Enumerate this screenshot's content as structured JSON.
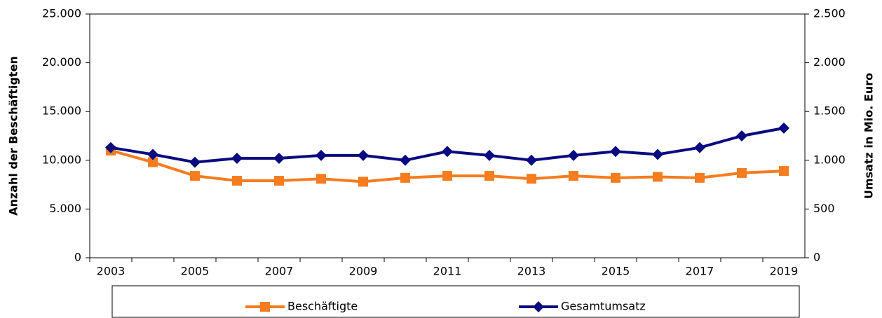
{
  "chart_data": {
    "type": "line",
    "categories": [
      "2003",
      null,
      "2005",
      null,
      "2007",
      null,
      "2009",
      null,
      "2011",
      null,
      "2013",
      null,
      "2015",
      null,
      "2017",
      null,
      "2019"
    ],
    "ylabel": "Anzahl der Beschäftigten",
    "y2label": "Umsatz in Mio. Euro",
    "ylim": [
      0,
      25000
    ],
    "yticks": [
      0,
      {
        "value": 5000,
        "label": "5.000"
      },
      {
        "value": 10000,
        "label": "10.000"
      },
      {
        "value": 15000,
        "label": "15.000"
      },
      {
        "value": 20000,
        "label": "20.000"
      },
      {
        "value": 25000,
        "label": "25.000"
      }
    ],
    "y2lim": [
      0,
      2500
    ],
    "y2ticks": [
      0,
      500,
      {
        "value": 1000,
        "label": "1.000"
      },
      {
        "value": 1500,
        "label": "1.500"
      },
      {
        "value": 2000,
        "label": "2.000"
      },
      {
        "value": 2500,
        "label": "2.500"
      }
    ],
    "legend": "bottom",
    "series": [
      {
        "name": "Beschäftigte",
        "color": "#f57c1f",
        "marker": "square",
        "values": [
          11000,
          9800,
          8400,
          7900,
          7900,
          8100,
          7800,
          8200,
          8400,
          8400,
          8100,
          8400,
          8200,
          8300,
          8200,
          8700,
          8900
        ]
      },
      {
        "name": "Gesamtumsatz",
        "color": "#0a0a80",
        "marker": "diamond",
        "axis": "y2",
        "values": [
          1130,
          1060,
          980,
          1020,
          1020,
          1050,
          1050,
          1000,
          1090,
          1050,
          1000,
          1050,
          1090,
          1060,
          1130,
          1250,
          1330
        ]
      }
    ]
  }
}
